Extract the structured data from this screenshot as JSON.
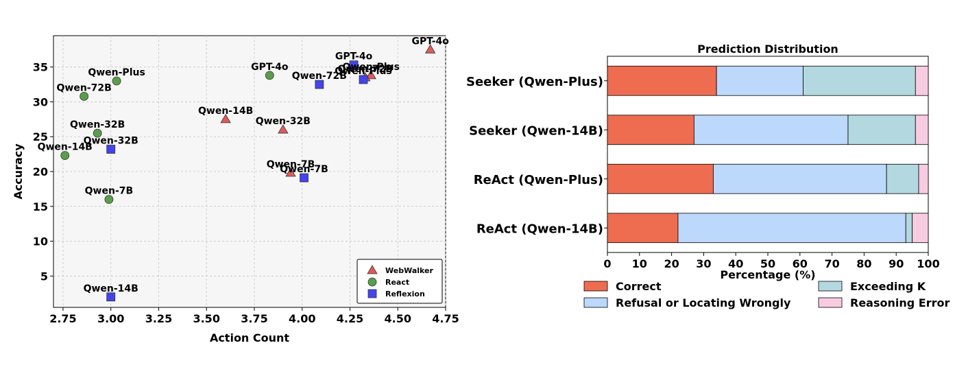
{
  "chart_data": [
    {
      "type": "scatter",
      "xlabel": "Action Count",
      "ylabel": "Accuracy",
      "xlim": [
        2.7,
        4.75
      ],
      "ylim": [
        0.5,
        39.5
      ],
      "xticks": [
        "2.75",
        "3.00",
        "3.25",
        "3.50",
        "3.75",
        "4.00",
        "4.25",
        "4.50",
        "4.75"
      ],
      "yticks": [
        "5",
        "10",
        "15",
        "20",
        "25",
        "30",
        "35"
      ],
      "grid": true,
      "legend_position": "bottom-right",
      "series": [
        {
          "name": "WebWalker",
          "marker": "triangle",
          "color": "#e05a5a",
          "points": [
            {
              "x": 4.67,
              "y": 37.5,
              "label": "GPT-4o"
            },
            {
              "x": 4.36,
              "y": 33.8,
              "label": "Qwen-Plus"
            },
            {
              "x": 4.33,
              "y": 33.5,
              "label": "Qwen-72B"
            },
            {
              "x": 3.6,
              "y": 27.5,
              "label": "Qwen-14B"
            },
            {
              "x": 3.9,
              "y": 26.0,
              "label": "Qwen-32B"
            },
            {
              "x": 3.94,
              "y": 19.8,
              "label": "Qwen-7B"
            }
          ]
        },
        {
          "name": "React",
          "marker": "circle",
          "color": "#5a9e4b",
          "points": [
            {
              "x": 3.03,
              "y": 33.0,
              "label": "Qwen-Plus"
            },
            {
              "x": 3.83,
              "y": 33.8,
              "label": "GPT-4o"
            },
            {
              "x": 2.86,
              "y": 30.8,
              "label": "Qwen-72B"
            },
            {
              "x": 2.93,
              "y": 25.5,
              "label": "Qwen-32B"
            },
            {
              "x": 2.76,
              "y": 22.3,
              "label": "Qwen-14B"
            },
            {
              "x": 2.99,
              "y": 16.0,
              "label": "Qwen-7B"
            }
          ]
        },
        {
          "name": "Reflexion",
          "marker": "square",
          "color": "#4444ee",
          "points": [
            {
              "x": 4.27,
              "y": 35.3,
              "label": "GPT-4o"
            },
            {
              "x": 4.09,
              "y": 32.5,
              "label": "Qwen-72B"
            },
            {
              "x": 4.32,
              "y": 33.2,
              "label": "Qwen-Plus"
            },
            {
              "x": 3.0,
              "y": 23.2,
              "label": "Qwen-32B"
            },
            {
              "x": 4.01,
              "y": 19.1,
              "label": "Qwen-7B"
            },
            {
              "x": 3.0,
              "y": 2.0,
              "label": "Qwen-14B"
            }
          ]
        }
      ]
    },
    {
      "type": "bar",
      "orientation": "horizontal",
      "stacked": true,
      "title": "Prediction Distribution",
      "xlabel": "Percentage (%)",
      "xlim": [
        0,
        100
      ],
      "xticks": [
        "0",
        "10",
        "20",
        "30",
        "40",
        "50",
        "60",
        "70",
        "80",
        "90",
        "100"
      ],
      "categories": [
        "Seeker (Qwen-Plus)",
        "Seeker (Qwen-14B)",
        "ReAct (Qwen-Plus)",
        "ReAct (Qwen-14B)"
      ],
      "legend_position": "bottom",
      "series": [
        {
          "name": "Correct",
          "color": "#ee6c50",
          "values": [
            34,
            27,
            33,
            22
          ]
        },
        {
          "name": "Refusal or Locating Wrongly",
          "color": "#bcd8fa",
          "values": [
            27,
            48,
            54,
            71
          ]
        },
        {
          "name": "Exceeding K",
          "color": "#b3d8e0",
          "values": [
            35,
            21,
            10,
            2
          ]
        },
        {
          "name": "Reasoning Error",
          "color": "#f7cbe0",
          "values": [
            4,
            4,
            3,
            5
          ]
        }
      ]
    }
  ]
}
